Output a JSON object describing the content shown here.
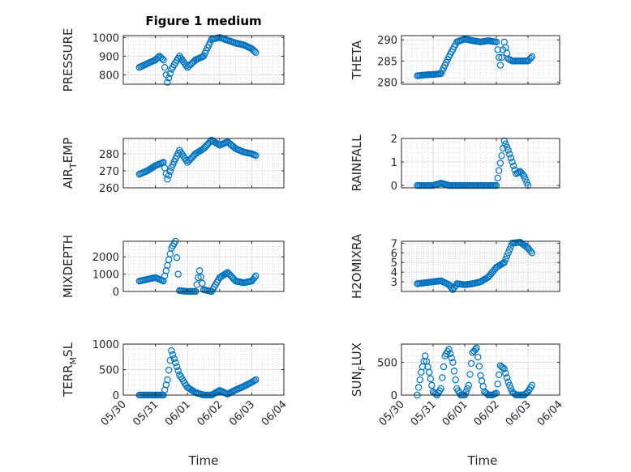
{
  "title": "Figure 1 medium",
  "xlabel": "Time",
  "x_ticks": [
    "05/30",
    "05/31",
    "06/01",
    "06/02",
    "06/03",
    "06/04"
  ],
  "marker_color": "#0072BD",
  "chart_data": [
    {
      "type": "scatter",
      "ylabel": "PRESSURE",
      "ylim": [
        750,
        1010
      ],
      "yticks": [
        800,
        900,
        1000
      ],
      "x": [
        "05/30 12:00",
        "05/30 18:00",
        "05/31 00:00",
        "05/31 03:00",
        "05/31 06:00",
        "05/31 09:00",
        "05/31 12:00",
        "05/31 18:00",
        "06/01 00:00",
        "06/01 06:00",
        "06/01 12:00",
        "06/01 18:00",
        "06/02 00:00",
        "06/02 06:00",
        "06/02 12:00",
        "06/02 18:00",
        "06/03 00:00",
        "06/03 03:00"
      ],
      "y": [
        840,
        860,
        880,
        900,
        880,
        760,
        830,
        900,
        840,
        880,
        900,
        990,
        1000,
        985,
        970,
        960,
        940,
        920
      ]
    },
    {
      "type": "scatter",
      "ylabel": "THETA",
      "ylim": [
        279.5,
        291
      ],
      "yticks": [
        280,
        285,
        290
      ],
      "x": [
        "05/30 12:00",
        "05/30 18:00",
        "05/31 00:00",
        "05/31 06:00",
        "05/31 12:00",
        "05/31 18:00",
        "06/01 00:00",
        "06/01 06:00",
        "06/01 12:00",
        "06/01 18:00",
        "06/02 00:00",
        "06/02 03:00",
        "06/02 06:00",
        "06/02 09:00",
        "06/02 12:00",
        "06/02 18:00",
        "06/03 00:00",
        "06/03 03:00"
      ],
      "y": [
        281.5,
        281.7,
        281.8,
        282,
        286,
        289.5,
        290.2,
        289.8,
        289.5,
        289.8,
        289.5,
        284,
        289.5,
        285.5,
        285,
        285,
        285,
        286
      ]
    },
    {
      "type": "scatter",
      "ylabel": "AIR_TEMP",
      "ylim": [
        260,
        289
      ],
      "yticks": [
        260,
        270,
        280
      ],
      "x": [
        "05/30 12:00",
        "05/30 18:00",
        "05/31 00:00",
        "05/31 06:00",
        "05/31 09:00",
        "05/31 12:00",
        "05/31 18:00",
        "06/01 00:00",
        "06/01 06:00",
        "06/01 12:00",
        "06/01 18:00",
        "06/02 00:00",
        "06/02 06:00",
        "06/02 12:00",
        "06/02 18:00",
        "06/03 00:00",
        "06/03 03:00"
      ],
      "y": [
        268,
        270,
        273,
        275,
        265,
        272,
        282,
        275,
        280,
        283,
        288,
        285,
        287,
        283,
        281,
        280,
        279
      ]
    },
    {
      "type": "scatter",
      "ylabel": "RAINFALL",
      "ylim": [
        -0.1,
        2
      ],
      "yticks": [
        0,
        1,
        2
      ],
      "x": [
        "05/30 12:00",
        "05/30 18:00",
        "05/31 00:00",
        "05/31 06:00",
        "05/31 12:00",
        "05/31 18:00",
        "06/01 00:00",
        "06/01 12:00",
        "06/02 00:00",
        "06/02 06:00",
        "06/02 09:00",
        "06/02 12:00",
        "06/02 15:00",
        "06/02 18:00",
        "06/02 21:00",
        "06/03 00:00"
      ],
      "y": [
        0,
        0,
        0,
        0.1,
        0,
        0,
        0,
        0,
        0,
        1.9,
        1.5,
        1,
        0.5,
        0.6,
        0.4,
        0
      ]
    },
    {
      "type": "scatter",
      "ylabel": "MIXDEPTH",
      "ylim": [
        0,
        2900
      ],
      "yticks": [
        0,
        1000,
        2000
      ],
      "x": [
        "05/30 12:00",
        "05/30 18:00",
        "05/31 00:00",
        "05/31 06:00",
        "05/31 09:00",
        "05/31 12:00",
        "05/31 15:00",
        "05/31 18:00",
        "06/01 00:00",
        "06/01 06:00",
        "06/01 09:00",
        "06/01 12:00",
        "06/01 18:00",
        "06/02 00:00",
        "06/02 06:00",
        "06/02 12:00",
        "06/02 18:00",
        "06/03 00:00",
        "06/03 03:00"
      ],
      "y": [
        600,
        700,
        800,
        600,
        1500,
        2500,
        2900,
        50,
        0,
        0,
        1200,
        100,
        0,
        800,
        1100,
        600,
        500,
        600,
        900
      ]
    },
    {
      "type": "scatter",
      "ylabel": "H2OMIXRA",
      "ylim": [
        2,
        7.2
      ],
      "yticks": [
        3,
        4,
        5,
        6,
        7
      ],
      "x": [
        "05/30 12:00",
        "05/30 18:00",
        "05/31 00:00",
        "05/31 06:00",
        "05/31 12:00",
        "05/31 15:00",
        "05/31 18:00",
        "06/01 00:00",
        "06/01 06:00",
        "06/01 12:00",
        "06/01 18:00",
        "06/02 00:00",
        "06/02 06:00",
        "06/02 12:00",
        "06/02 18:00",
        "06/03 00:00",
        "06/03 03:00"
      ],
      "y": [
        2.8,
        2.9,
        3,
        3.1,
        2.7,
        2.2,
        2.8,
        2.7,
        2.8,
        3,
        3.5,
        4.5,
        5,
        7,
        7.1,
        6.5,
        6
      ]
    },
    {
      "type": "scatter",
      "ylabel": "TERR_MSL",
      "ylim": [
        0,
        1000
      ],
      "yticks": [
        0,
        500,
        1000
      ],
      "x": [
        "05/30 12:00",
        "05/30 18:00",
        "05/31 00:00",
        "05/31 06:00",
        "05/31 09:00",
        "05/31 12:00",
        "05/31 18:00",
        "06/01 00:00",
        "06/01 06:00",
        "06/01 12:00",
        "06/01 18:00",
        "06/02 00:00",
        "06/02 06:00",
        "06/02 12:00",
        "06/02 18:00",
        "06/03 00:00",
        "06/03 03:00"
      ],
      "y": [
        0,
        0,
        0,
        0,
        300,
        870,
        400,
        150,
        50,
        0,
        0,
        90,
        20,
        100,
        170,
        250,
        300
      ]
    },
    {
      "type": "scatter",
      "ylabel": "SUN_FLUX",
      "ylim": [
        0,
        780
      ],
      "yticks": [
        0,
        500
      ],
      "x": [
        "05/30 12:00",
        "05/30 15:00",
        "05/30 18:00",
        "05/30 21:00",
        "05/31 00:00",
        "05/31 03:00",
        "05/31 06:00",
        "05/31 09:00",
        "05/31 12:00",
        "05/31 15:00",
        "05/31 18:00",
        "05/31 21:00",
        "06/01 00:00",
        "06/01 03:00",
        "06/01 06:00",
        "06/01 09:00",
        "06/01 12:00",
        "06/01 15:00",
        "06/01 18:00",
        "06/01 21:00",
        "06/02 00:00",
        "06/02 03:00",
        "06/02 06:00",
        "06/02 09:00",
        "06/02 12:00",
        "06/02 15:00",
        "06/02 18:00",
        "06/02 21:00",
        "06/03 00:00",
        "06/03 03:00"
      ],
      "y": [
        0,
        350,
        600,
        350,
        50,
        0,
        100,
        600,
        700,
        500,
        100,
        0,
        0,
        150,
        650,
        720,
        300,
        50,
        0,
        0,
        30,
        450,
        400,
        200,
        50,
        0,
        0,
        0,
        50,
        150
      ]
    }
  ]
}
